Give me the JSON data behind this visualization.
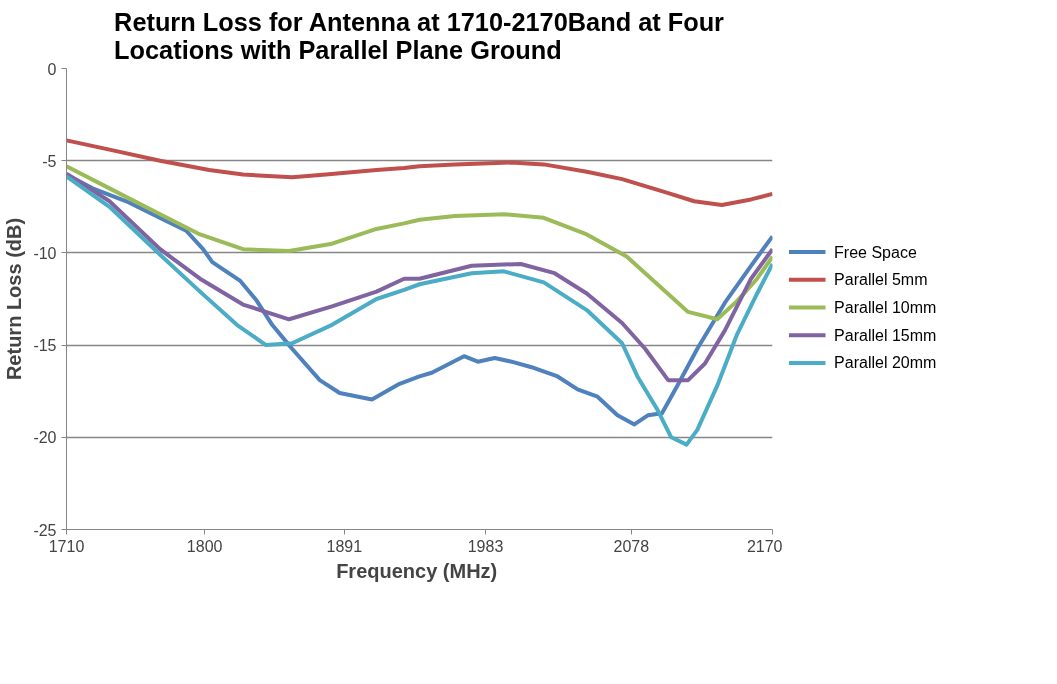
{
  "chart_data": {
    "type": "line",
    "title": "Return Loss for Antenna at 1710-2170Band at Four Locations with Parallel Plane Ground",
    "xlabel": "Frequency  (MHz)",
    "ylabel": "Return Loss (dB)",
    "xlim": [
      1710,
      2170
    ],
    "xticks": [
      1710,
      1800,
      1891,
      1983,
      2078,
      2170
    ],
    "ylim": [
      -25,
      0
    ],
    "yticks": [
      -25,
      -20,
      -15,
      -10,
      -5,
      0
    ],
    "grid": "y",
    "legend": "right",
    "marker": "none",
    "line_style": "solid",
    "series": [
      {
        "name": "Free Space",
        "color": "#4f81bd",
        "x": [
          1710,
          1727,
          1749,
          1771,
          1788,
          1799,
          1805,
          1823,
          1834,
          1844,
          1855,
          1857,
          1875,
          1888,
          1909,
          1927,
          1940,
          1948,
          1969,
          1978,
          1989,
          2000,
          2013,
          2030,
          2043,
          2056,
          2069,
          2080,
          2089,
          2098,
          2108,
          2121,
          2139,
          2156,
          2170
        ],
        "values": [
          -5.75,
          -6.5,
          -7.2,
          -8.1,
          -8.8,
          -9.8,
          -10.5,
          -11.5,
          -12.6,
          -13.9,
          -15.0,
          -15.2,
          -16.9,
          -17.6,
          -17.95,
          -17.1,
          -16.7,
          -16.5,
          -15.6,
          -15.9,
          -15.7,
          -15.9,
          -16.2,
          -16.7,
          -17.4,
          -17.8,
          -18.8,
          -19.3,
          -18.8,
          -18.7,
          -17.2,
          -15.2,
          -12.7,
          -10.7,
          -9.1
        ]
      },
      {
        "name": "Parallel 5mm",
        "color": "#c0504d",
        "x": [
          1710,
          1738,
          1771,
          1803,
          1825,
          1857,
          1879,
          1912,
          1930,
          1940,
          1963,
          2000,
          2021,
          2049,
          2072,
          2100,
          2119,
          2137,
          2156,
          2170
        ],
        "values": [
          -3.9,
          -4.4,
          -5.0,
          -5.5,
          -5.75,
          -5.9,
          -5.75,
          -5.5,
          -5.4,
          -5.3,
          -5.2,
          -5.1,
          -5.2,
          -5.6,
          -6.0,
          -6.7,
          -7.2,
          -7.4,
          -7.1,
          -6.8
        ]
      },
      {
        "name": "Parallel 10mm",
        "color": "#9bbb59",
        "x": [
          1710,
          1738,
          1771,
          1797,
          1825,
          1855,
          1883,
          1912,
          1930,
          1940,
          1963,
          1995,
          2021,
          2049,
          2075,
          2095,
          2115,
          2134,
          2147,
          2160,
          2170
        ],
        "values": [
          -5.3,
          -6.5,
          -7.9,
          -9.0,
          -9.8,
          -9.9,
          -9.5,
          -8.7,
          -8.4,
          -8.2,
          -8.0,
          -7.9,
          -8.1,
          -9.0,
          -10.2,
          -11.7,
          -13.2,
          -13.6,
          -12.6,
          -11.4,
          -10.2
        ]
      },
      {
        "name": "Parallel 15mm",
        "color": "#8064a2",
        "x": [
          1710,
          1738,
          1771,
          1797,
          1825,
          1855,
          1883,
          1912,
          1930,
          1940,
          1974,
          2006,
          2028,
          2049,
          2072,
          2087,
          2102,
          2115,
          2126,
          2139,
          2156,
          2170
        ],
        "values": [
          -5.7,
          -7.2,
          -9.8,
          -11.4,
          -12.8,
          -13.6,
          -12.9,
          -12.1,
          -11.4,
          -11.4,
          -10.7,
          -10.6,
          -11.1,
          -12.2,
          -13.8,
          -15.2,
          -16.9,
          -16.9,
          -16.0,
          -14.2,
          -11.4,
          -9.8
        ]
      },
      {
        "name": "Parallel 20mm",
        "color": "#4bacc6",
        "x": [
          1710,
          1738,
          1771,
          1797,
          1821,
          1840,
          1857,
          1883,
          1912,
          1930,
          1940,
          1974,
          1995,
          2021,
          2049,
          2072,
          2082,
          2095,
          2104,
          2114,
          2121,
          2134,
          2147,
          2160,
          2170
        ],
        "values": [
          -5.85,
          -7.5,
          -10.1,
          -12.1,
          -13.9,
          -15.0,
          -14.9,
          -13.9,
          -12.5,
          -12.0,
          -11.7,
          -11.1,
          -11.0,
          -11.6,
          -13.1,
          -14.9,
          -16.7,
          -18.5,
          -20.0,
          -20.4,
          -19.6,
          -17.2,
          -14.4,
          -12.2,
          -10.6
        ]
      }
    ]
  }
}
